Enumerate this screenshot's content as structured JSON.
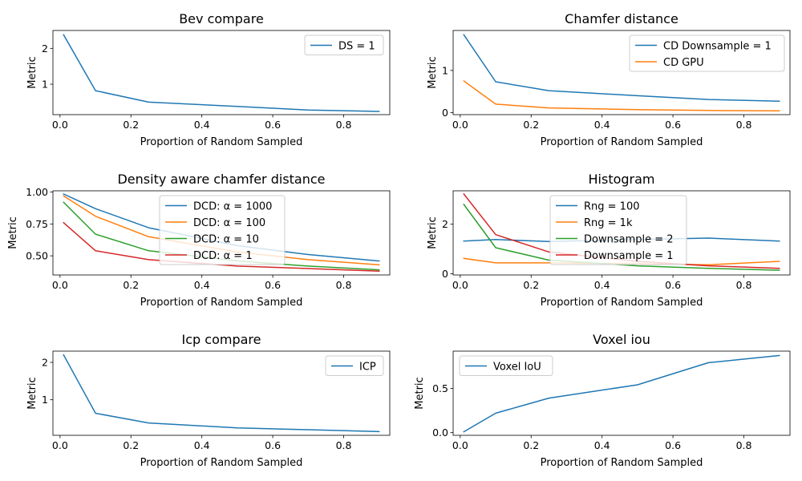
{
  "figure": {
    "background": "#ffffff"
  },
  "chart_data": [
    {
      "type": "line",
      "title": "Bev compare",
      "xlabel": "Proportion of Random Sampled",
      "ylabel": "Metric",
      "xlim": [
        -0.02,
        0.93
      ],
      "ylim": [
        0.15,
        2.5
      ],
      "xticks": [
        0.0,
        0.2,
        0.4,
        0.6,
        0.8
      ],
      "xtick_labels": [
        "0.0",
        "0.2",
        "0.4",
        "0.6",
        "0.8"
      ],
      "yticks": [
        1,
        2
      ],
      "ytick_labels": [
        "1",
        "2"
      ],
      "legend": "top-right",
      "x": [
        0.01,
        0.1,
        0.25,
        0.5,
        0.7,
        0.9
      ],
      "series": [
        {
          "name": "DS = 1",
          "color": "#1f77b4",
          "values": [
            2.38,
            0.82,
            0.5,
            0.38,
            0.28,
            0.24
          ]
        }
      ]
    },
    {
      "type": "line",
      "title": "Chamfer distance",
      "xlabel": "Proportion of Random Sampled",
      "ylabel": "Metric",
      "xlim": [
        -0.02,
        0.93
      ],
      "ylim": [
        -0.05,
        1.95
      ],
      "xticks": [
        0.0,
        0.2,
        0.4,
        0.6,
        0.8
      ],
      "xtick_labels": [
        "0.0",
        "0.2",
        "0.4",
        "0.6",
        "0.8"
      ],
      "yticks": [
        0,
        1
      ],
      "ytick_labels": [
        "0",
        "1"
      ],
      "legend": "top-right",
      "x": [
        0.01,
        0.1,
        0.25,
        0.5,
        0.7,
        0.9
      ],
      "series": [
        {
          "name": "CD Downsample = 1",
          "color": "#1f77b4",
          "values": [
            1.85,
            0.73,
            0.52,
            0.4,
            0.31,
            0.27
          ]
        },
        {
          "name": "CD GPU",
          "color": "#ff7f0e",
          "values": [
            0.75,
            0.2,
            0.11,
            0.07,
            0.05,
            0.04
          ]
        }
      ]
    },
    {
      "type": "line",
      "title": "Density aware chamfer distance",
      "xlabel": "Proportion of Random Sampled",
      "ylabel": "Metric",
      "xlim": [
        -0.02,
        0.93
      ],
      "ylim": [
        0.35,
        1.01
      ],
      "xticks": [
        0.0,
        0.2,
        0.4,
        0.6,
        0.8
      ],
      "xtick_labels": [
        "0.0",
        "0.2",
        "0.4",
        "0.6",
        "0.8"
      ],
      "yticks": [
        0.5,
        0.75,
        1.0
      ],
      "ytick_labels": [
        "0.50",
        "0.75",
        "1.00"
      ],
      "legend": "top-center",
      "x": [
        0.01,
        0.1,
        0.25,
        0.5,
        0.7,
        0.9
      ],
      "series": [
        {
          "name": "DCD: α = 1000",
          "color": "#1f77b4",
          "values": [
            0.985,
            0.87,
            0.72,
            0.58,
            0.51,
            0.46
          ]
        },
        {
          "name": "DCD: α = 100",
          "color": "#ff7f0e",
          "values": [
            0.97,
            0.81,
            0.65,
            0.53,
            0.47,
            0.43
          ]
        },
        {
          "name": "DCD: α = 10",
          "color": "#2ca02c",
          "values": [
            0.92,
            0.67,
            0.54,
            0.46,
            0.42,
            0.39
          ]
        },
        {
          "name": "DCD: α = 1",
          "color": "#d62728",
          "values": [
            0.76,
            0.54,
            0.47,
            0.42,
            0.4,
            0.38
          ]
        }
      ]
    },
    {
      "type": "line",
      "title": "Histogram",
      "xlabel": "Proportion of Random Sampled",
      "ylabel": "Metric",
      "xlim": [
        -0.02,
        0.93
      ],
      "ylim": [
        -0.05,
        3.35
      ],
      "xticks": [
        0.0,
        0.2,
        0.4,
        0.6,
        0.8
      ],
      "xtick_labels": [
        "0.0",
        "0.2",
        "0.4",
        "0.6",
        "0.8"
      ],
      "yticks": [
        0,
        2
      ],
      "ytick_labels": [
        "0",
        "2"
      ],
      "legend": "top-center",
      "x": [
        0.01,
        0.1,
        0.25,
        0.5,
        0.7,
        0.9
      ],
      "series": [
        {
          "name": "Rng = 100",
          "color": "#1f77b4",
          "values": [
            1.32,
            1.38,
            1.3,
            1.38,
            1.44,
            1.32
          ]
        },
        {
          "name": "Rng = 1k",
          "color": "#ff7f0e",
          "values": [
            0.62,
            0.44,
            0.44,
            0.4,
            0.36,
            0.5
          ]
        },
        {
          "name": "Downsample = 2",
          "color": "#2ca02c",
          "values": [
            2.8,
            1.05,
            0.55,
            0.32,
            0.22,
            0.14
          ]
        },
        {
          "name": "Downsample = 1",
          "color": "#d62728",
          "values": [
            3.22,
            1.58,
            0.88,
            0.5,
            0.32,
            0.22
          ]
        }
      ]
    },
    {
      "type": "line",
      "title": "Icp compare",
      "xlabel": "Proportion of Random Sampled",
      "ylabel": "Metric",
      "xlim": [
        -0.02,
        0.93
      ],
      "ylim": [
        0.05,
        2.3
      ],
      "xticks": [
        0.0,
        0.2,
        0.4,
        0.6,
        0.8
      ],
      "xtick_labels": [
        "0.0",
        "0.2",
        "0.4",
        "0.6",
        "0.8"
      ],
      "yticks": [
        1,
        2
      ],
      "ytick_labels": [
        "1",
        "2"
      ],
      "legend": "top-right",
      "x": [
        0.01,
        0.1,
        0.25,
        0.5,
        0.7,
        0.9
      ],
      "series": [
        {
          "name": "ICP",
          "color": "#1f77b4",
          "values": [
            2.2,
            0.64,
            0.38,
            0.25,
            0.2,
            0.15
          ]
        }
      ]
    },
    {
      "type": "line",
      "title": "Voxel iou",
      "xlabel": "Proportion of Random Sampled",
      "ylabel": "Metric",
      "xlim": [
        -0.02,
        0.93
      ],
      "ylim": [
        -0.03,
        0.92
      ],
      "xticks": [
        0.0,
        0.2,
        0.4,
        0.6,
        0.8
      ],
      "xtick_labels": [
        "0.0",
        "0.2",
        "0.4",
        "0.6",
        "0.8"
      ],
      "yticks": [
        0.0,
        0.5
      ],
      "ytick_labels": [
        "0.0",
        "0.5"
      ],
      "legend": "top-left",
      "x": [
        0.01,
        0.1,
        0.25,
        0.5,
        0.7,
        0.9
      ],
      "series": [
        {
          "name": "Voxel IoU",
          "color": "#1f77b4",
          "values": [
            0.01,
            0.22,
            0.39,
            0.54,
            0.79,
            0.87
          ]
        }
      ]
    }
  ]
}
